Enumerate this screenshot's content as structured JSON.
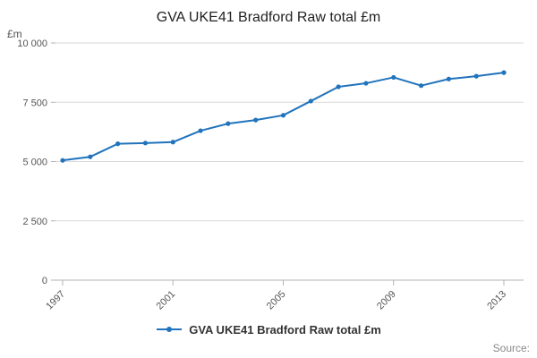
{
  "title": "GVA UKE41 Bradford Raw total £m",
  "legend": {
    "label": "GVA UKE41 Bradford Raw total £m"
  },
  "source_label": "Source:",
  "colors": {
    "line": "#2073bc",
    "grid": "#d9d9d9",
    "axis": "#b3b3b3",
    "tick_text": "#555555"
  },
  "chart_data": {
    "type": "line",
    "title": "GVA UKE41 Bradford Raw total £m",
    "ylabel_unit": "£m",
    "series": [
      {
        "name": "GVA UKE41 Bradford Raw total £m",
        "x": [
          1997,
          1998,
          1999,
          2000,
          2001,
          2002,
          2003,
          2004,
          2005,
          2006,
          2007,
          2008,
          2009,
          2010,
          2011,
          2012,
          2013
        ],
        "values": [
          5050,
          5200,
          5750,
          5780,
          5820,
          6300,
          6600,
          6750,
          6950,
          7550,
          8150,
          8300,
          8550,
          8200,
          8480,
          8600,
          8750
        ]
      }
    ],
    "x_ticks": [
      1997,
      2001,
      2005,
      2009,
      2013
    ],
    "y_ticks": {
      "values": [
        0,
        2500,
        5000,
        7500,
        10000
      ],
      "labels": [
        "0",
        "2 500",
        "5 000",
        "7 500",
        "10 000"
      ]
    },
    "ylim": [
      0,
      10000
    ],
    "xlim": [
      1997,
      2013
    ],
    "grid": true,
    "legend_position": "bottom"
  }
}
